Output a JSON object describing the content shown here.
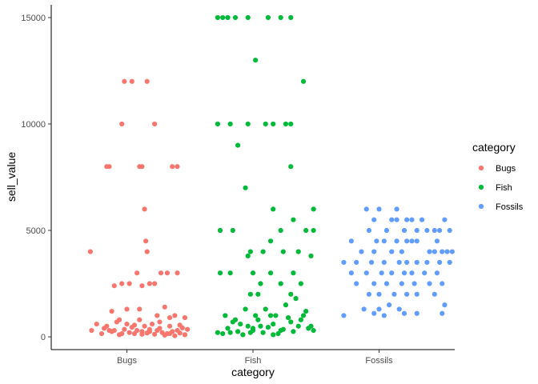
{
  "chart_data": {
    "type": "scatter",
    "subtype": "jitter",
    "xlabel": "category",
    "ylabel": "sell_value",
    "categories": [
      "Bugs",
      "Fish",
      "Fossils"
    ],
    "ylim": [
      -600,
      15600
    ],
    "yticks": [
      0,
      5000,
      10000,
      15000
    ],
    "ytick_labels": [
      "0",
      "5000",
      "10000",
      "15000"
    ],
    "grid": false,
    "legend": {
      "title": "category",
      "position": "right"
    },
    "series": [
      {
        "name": "Bugs",
        "color": "#F8766D",
        "points": [
          [
            0.71,
            4000
          ],
          [
            0.9,
            2400
          ],
          [
            0.96,
            2500
          ],
          [
            1.02,
            2500
          ],
          [
            1.12,
            2400
          ],
          [
            1.18,
            2500
          ],
          [
            1.22,
            2500
          ],
          [
            1.08,
            3000
          ],
          [
            1.27,
            3000
          ],
          [
            1.32,
            3000
          ],
          [
            1.4,
            3000
          ],
          [
            1.14,
            6000
          ],
          [
            1.15,
            4500
          ],
          [
            1.16,
            4000
          ],
          [
            1.0,
            1300
          ],
          [
            1.1,
            1300
          ],
          [
            0.88,
            1200
          ],
          [
            1.3,
            1400
          ],
          [
            0.84,
            8000
          ],
          [
            0.86,
            8000
          ],
          [
            1.1,
            8000
          ],
          [
            1.12,
            8000
          ],
          [
            1.36,
            8000
          ],
          [
            1.4,
            8000
          ],
          [
            0.96,
            10000
          ],
          [
            1.22,
            10000
          ],
          [
            0.98,
            12000
          ],
          [
            1.04,
            12000
          ],
          [
            1.16,
            12000
          ],
          [
            0.72,
            300
          ],
          [
            0.8,
            150
          ],
          [
            0.84,
            500
          ],
          [
            0.88,
            250
          ],
          [
            0.92,
            700
          ],
          [
            0.94,
            100
          ],
          [
            0.98,
            350
          ],
          [
            1.0,
            600
          ],
          [
            1.02,
            200
          ],
          [
            1.04,
            450
          ],
          [
            1.06,
            150
          ],
          [
            1.08,
            300
          ],
          [
            1.1,
            800
          ],
          [
            1.12,
            250
          ],
          [
            1.14,
            500
          ],
          [
            1.16,
            180
          ],
          [
            1.18,
            350
          ],
          [
            1.2,
            600
          ],
          [
            1.22,
            120
          ],
          [
            1.24,
            300
          ],
          [
            1.26,
            400
          ],
          [
            1.28,
            200
          ],
          [
            1.3,
            80
          ],
          [
            1.32,
            150
          ],
          [
            1.34,
            500
          ],
          [
            1.36,
            250
          ],
          [
            1.38,
            50
          ],
          [
            1.4,
            300
          ],
          [
            1.42,
            180
          ],
          [
            1.44,
            420
          ],
          [
            1.46,
            100
          ],
          [
            1.48,
            350
          ],
          [
            0.76,
            600
          ],
          [
            0.82,
            400
          ],
          [
            0.9,
            300
          ],
          [
            0.96,
            150
          ],
          [
            1.06,
            550
          ],
          [
            1.18,
            250
          ],
          [
            1.26,
            700
          ],
          [
            1.34,
            150
          ],
          [
            1.42,
            550
          ],
          [
            1.24,
            1000
          ],
          [
            1.34,
            900
          ],
          [
            1.38,
            1000
          ],
          [
            1.46,
            900
          ],
          [
            0.94,
            800
          ],
          [
            0.86,
            300
          ],
          [
            1.12,
            120
          ]
        ]
      },
      {
        "name": "Fish",
        "color": "#00BA38",
        "points": [
          [
            1.72,
            15000
          ],
          [
            1.76,
            15000
          ],
          [
            1.8,
            15000
          ],
          [
            1.86,
            15000
          ],
          [
            1.96,
            15000
          ],
          [
            2.12,
            15000
          ],
          [
            2.22,
            15000
          ],
          [
            2.3,
            15000
          ],
          [
            2.02,
            13000
          ],
          [
            2.4,
            12000
          ],
          [
            1.72,
            10000
          ],
          [
            1.82,
            10000
          ],
          [
            1.96,
            10000
          ],
          [
            2.1,
            10000
          ],
          [
            2.16,
            10000
          ],
          [
            2.26,
            10000
          ],
          [
            2.3,
            10000
          ],
          [
            1.88,
            9000
          ],
          [
            2.3,
            8000
          ],
          [
            1.94,
            7000
          ],
          [
            2.16,
            6000
          ],
          [
            2.48,
            6000
          ],
          [
            2.32,
            5500
          ],
          [
            2.42,
            5000
          ],
          [
            2.48,
            5000
          ],
          [
            1.74,
            5000
          ],
          [
            1.84,
            5000
          ],
          [
            2.22,
            5000
          ],
          [
            2.14,
            4500
          ],
          [
            1.98,
            4000
          ],
          [
            2.24,
            4000
          ],
          [
            2.08,
            4000
          ],
          [
            2.36,
            4000
          ],
          [
            1.96,
            3800
          ],
          [
            1.82,
            3000
          ],
          [
            2.0,
            3000
          ],
          [
            2.14,
            3000
          ],
          [
            2.32,
            3000
          ],
          [
            1.74,
            3000
          ],
          [
            2.06,
            2500
          ],
          [
            2.22,
            2500
          ],
          [
            2.38,
            2500
          ],
          [
            2.46,
            3800
          ],
          [
            1.98,
            2000
          ],
          [
            2.04,
            2000
          ],
          [
            2.3,
            2000
          ],
          [
            1.72,
            200
          ],
          [
            1.76,
            150
          ],
          [
            1.8,
            400
          ],
          [
            1.84,
            700
          ],
          [
            1.88,
            250
          ],
          [
            1.92,
            100
          ],
          [
            1.96,
            500
          ],
          [
            2.0,
            300
          ],
          [
            2.04,
            800
          ],
          [
            2.08,
            200
          ],
          [
            2.12,
            450
          ],
          [
            2.16,
            600
          ],
          [
            2.2,
            150
          ],
          [
            2.24,
            350
          ],
          [
            2.28,
            900
          ],
          [
            2.32,
            250
          ],
          [
            2.36,
            500
          ],
          [
            2.4,
            1000
          ],
          [
            2.44,
            400
          ],
          [
            2.48,
            300
          ],
          [
            1.78,
            1000
          ],
          [
            1.86,
            800
          ],
          [
            1.94,
            1300
          ],
          [
            2.02,
            1000
          ],
          [
            2.1,
            1300
          ],
          [
            2.18,
            1000
          ],
          [
            2.26,
            1500
          ],
          [
            2.34,
            1800
          ],
          [
            2.42,
            1200
          ],
          [
            2.14,
            1000
          ],
          [
            1.9,
            600
          ],
          [
            2.06,
            500
          ],
          [
            2.3,
            700
          ],
          [
            2.46,
            500
          ],
          [
            1.82,
            200
          ],
          [
            1.98,
            200
          ],
          [
            2.22,
            300
          ],
          [
            2.38,
            800
          ],
          [
            2.0,
            400
          ],
          [
            2.16,
            100
          ]
        ]
      },
      {
        "name": "Fossils",
        "color": "#619CFF",
        "points": [
          [
            2.9,
            6000
          ],
          [
            3.0,
            6000
          ],
          [
            3.14,
            6000
          ],
          [
            2.96,
            5500
          ],
          [
            3.1,
            5500
          ],
          [
            3.14,
            5500
          ],
          [
            3.22,
            5500
          ],
          [
            3.26,
            5500
          ],
          [
            3.34,
            5500
          ],
          [
            3.52,
            5500
          ],
          [
            2.92,
            5000
          ],
          [
            3.06,
            5000
          ],
          [
            3.2,
            5000
          ],
          [
            3.3,
            5000
          ],
          [
            3.38,
            5000
          ],
          [
            3.44,
            5000
          ],
          [
            3.48,
            5000
          ],
          [
            3.56,
            5000
          ],
          [
            2.78,
            4500
          ],
          [
            2.98,
            4500
          ],
          [
            3.04,
            4500
          ],
          [
            3.14,
            4500
          ],
          [
            3.22,
            4500
          ],
          [
            3.26,
            4500
          ],
          [
            3.3,
            4500
          ],
          [
            3.46,
            4500
          ],
          [
            2.86,
            4000
          ],
          [
            2.96,
            4000
          ],
          [
            3.1,
            4000
          ],
          [
            3.18,
            4000
          ],
          [
            3.4,
            4000
          ],
          [
            3.44,
            4000
          ],
          [
            3.5,
            4000
          ],
          [
            3.54,
            4000
          ],
          [
            3.58,
            4000
          ],
          [
            2.72,
            3500
          ],
          [
            2.82,
            3500
          ],
          [
            2.94,
            3500
          ],
          [
            3.04,
            3500
          ],
          [
            3.16,
            3500
          ],
          [
            3.22,
            3500
          ],
          [
            3.3,
            3500
          ],
          [
            3.38,
            3500
          ],
          [
            3.48,
            3500
          ],
          [
            3.56,
            3500
          ],
          [
            2.78,
            3000
          ],
          [
            2.9,
            3000
          ],
          [
            3.02,
            3000
          ],
          [
            3.1,
            3000
          ],
          [
            3.2,
            3000
          ],
          [
            3.26,
            3000
          ],
          [
            3.36,
            3000
          ],
          [
            3.46,
            3000
          ],
          [
            2.82,
            2500
          ],
          [
            2.96,
            2500
          ],
          [
            3.06,
            2500
          ],
          [
            3.18,
            2500
          ],
          [
            3.28,
            2500
          ],
          [
            3.4,
            2500
          ],
          [
            3.5,
            2500
          ],
          [
            2.92,
            2000
          ],
          [
            3.0,
            2000
          ],
          [
            3.12,
            2000
          ],
          [
            3.22,
            2000
          ],
          [
            3.3,
            2000
          ],
          [
            3.44,
            2000
          ],
          [
            2.88,
            1300
          ],
          [
            3.0,
            1300
          ],
          [
            3.08,
            1500
          ],
          [
            3.16,
            1300
          ],
          [
            3.3,
            1100
          ],
          [
            3.52,
            1500
          ],
          [
            2.72,
            1000
          ],
          [
            2.96,
            1100
          ],
          [
            3.04,
            1000
          ],
          [
            3.2,
            1100
          ],
          [
            3.5,
            1100
          ]
        ]
      }
    ]
  }
}
